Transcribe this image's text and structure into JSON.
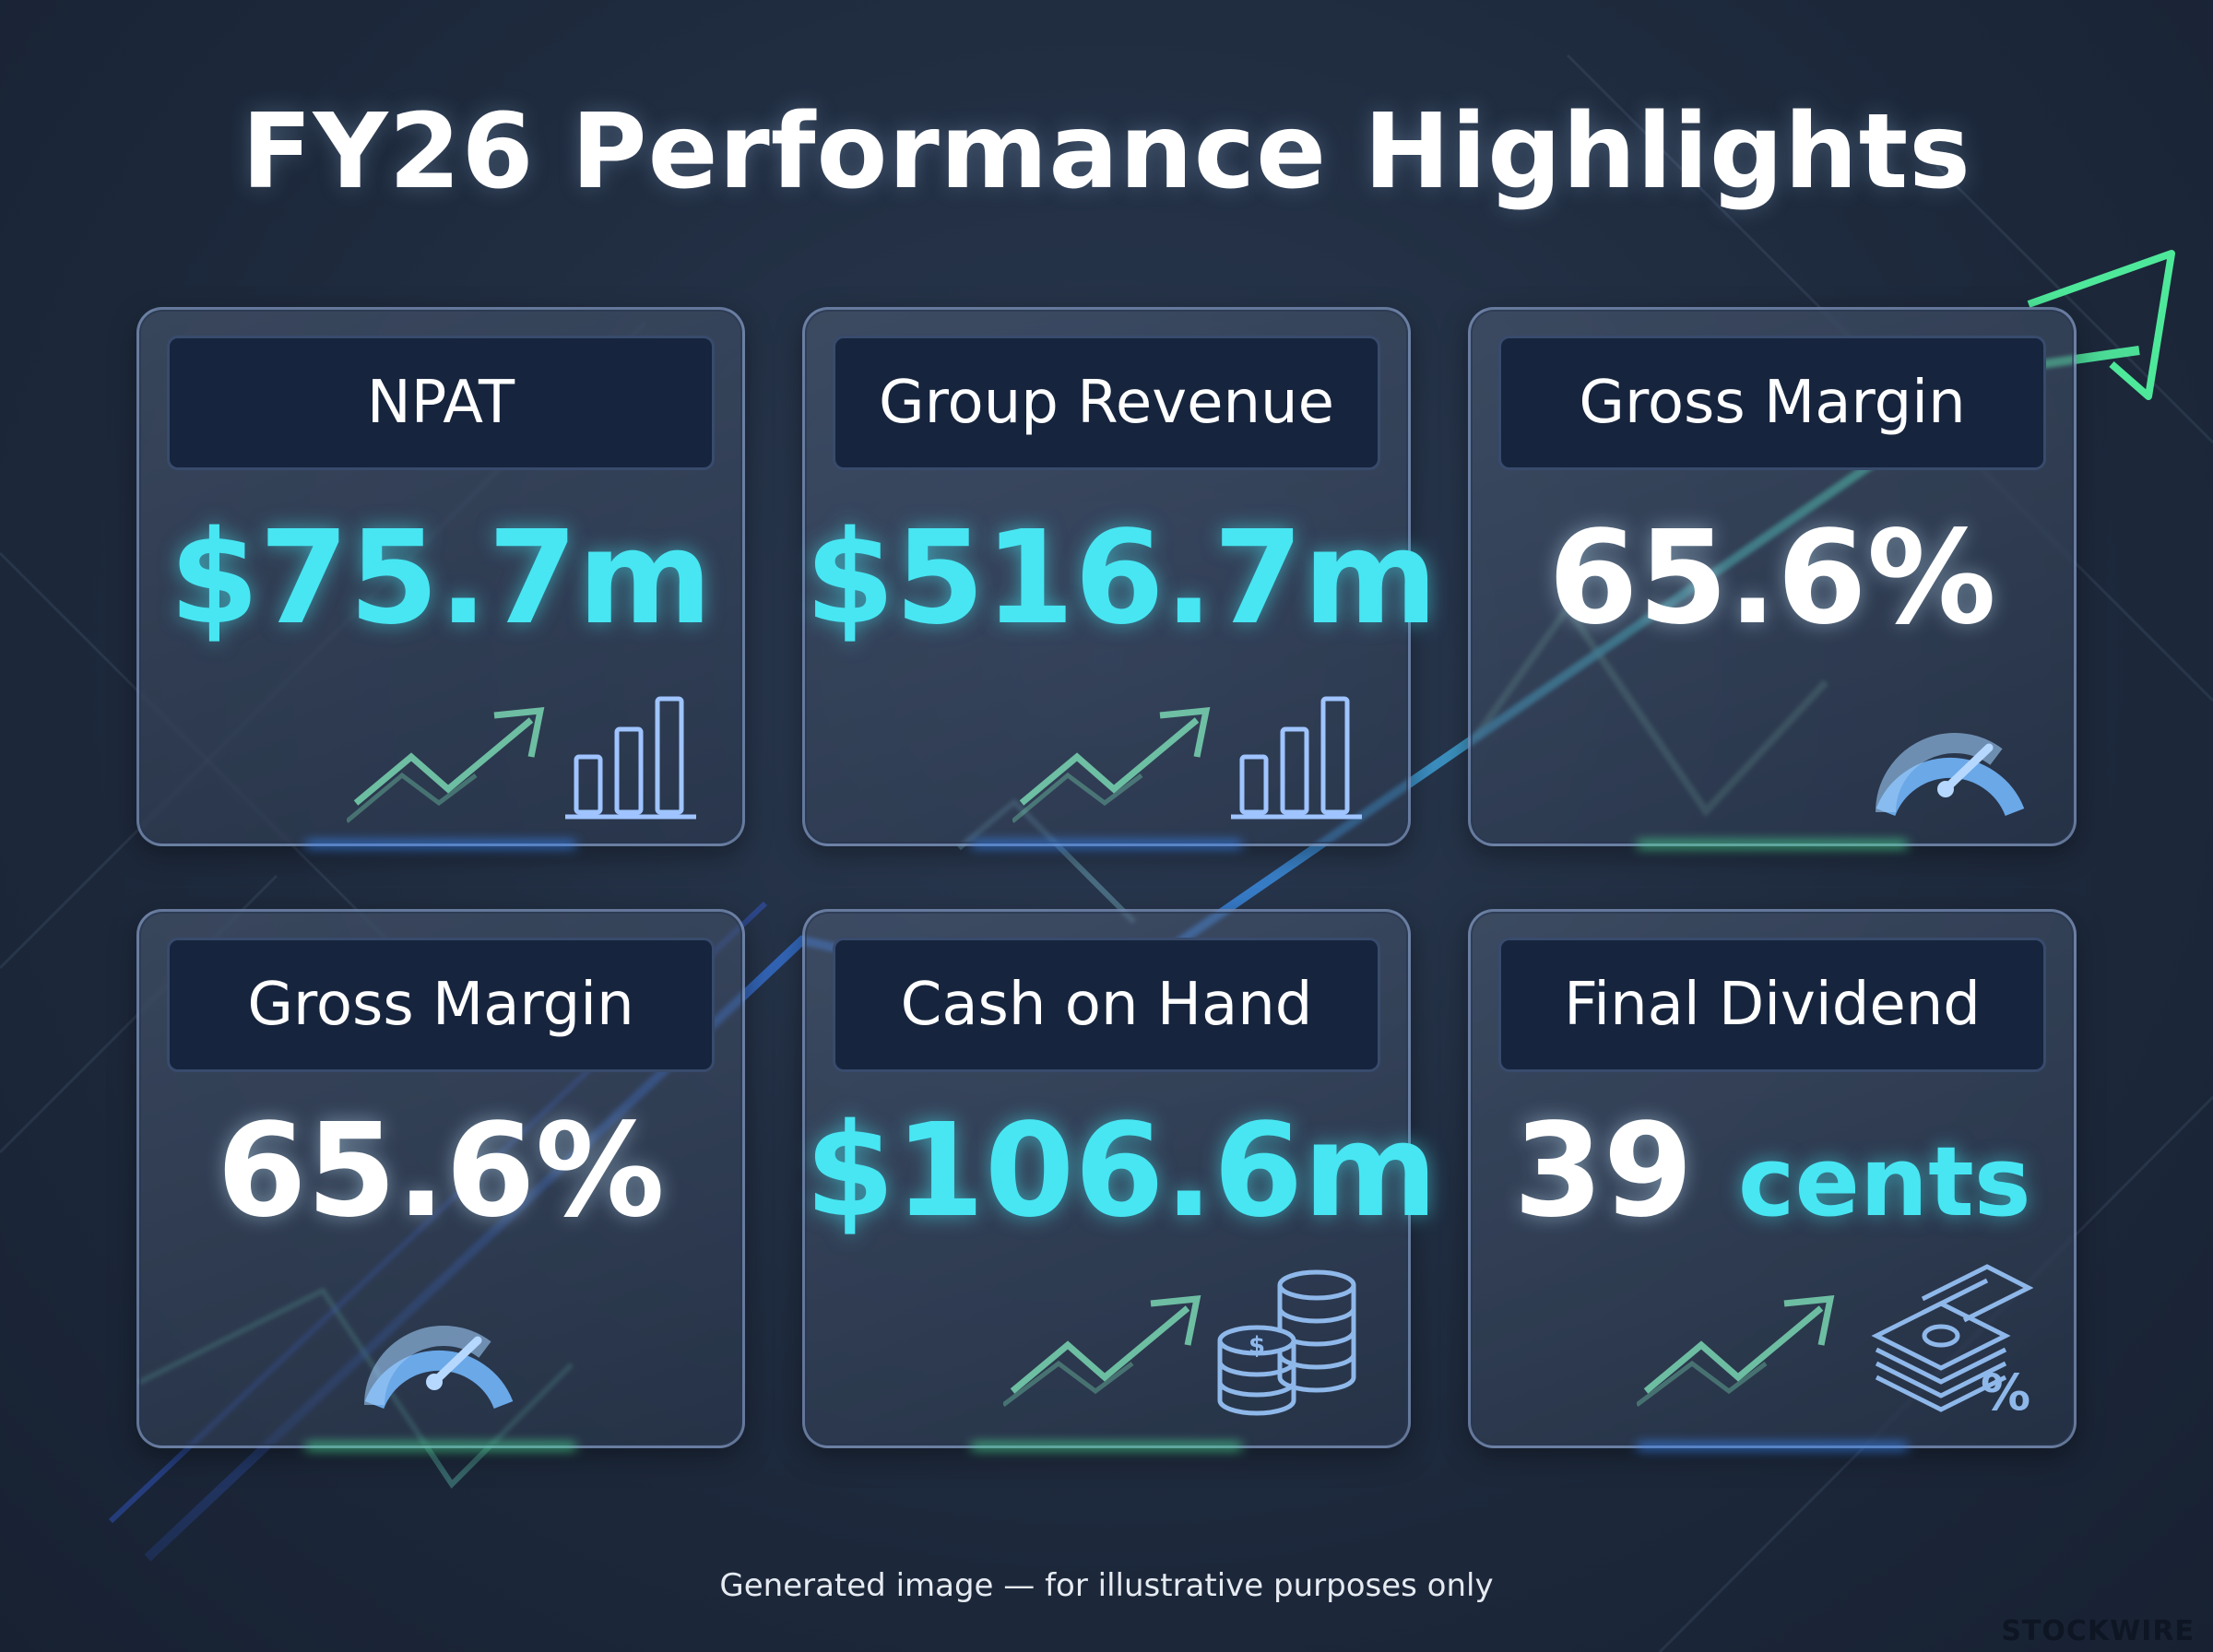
{
  "page": {
    "title": "FY26 Performance Highlights",
    "footer_note": "Generated image — for illustrative purposes only",
    "brand": "STOCKWIRE"
  },
  "colors": {
    "accent_cyan": "#47e6f2",
    "accent_green": "#4ee89a",
    "accent_blue": "#3b8cff",
    "header_bg": "#16243d"
  },
  "cards": [
    {
      "label": "NPAT",
      "value_prefix": "$75.7",
      "value_unit": "m",
      "icons": [
        "trend-up-arrow-icon",
        "bar-chart-icon"
      ]
    },
    {
      "label": "Group Revenue",
      "value_prefix": "$516.7",
      "value_unit": "m",
      "icons": [
        "trend-up-arrow-icon",
        "bar-chart-icon"
      ]
    },
    {
      "label": "Gross Margin",
      "value_prefix": "65.6%",
      "value_unit": "",
      "icons": [
        "gauge-icon"
      ]
    },
    {
      "label": "Gross Margin",
      "value_prefix": "65.6%",
      "value_unit": "",
      "icons": [
        "gauge-icon"
      ]
    },
    {
      "label": "Cash on Hand",
      "value_prefix": "$106.6",
      "value_unit": "m",
      "icons": [
        "trend-up-arrow-icon",
        "coin-stacks-icon"
      ]
    },
    {
      "label": "Final Dividend",
      "value_prefix": "39",
      "value_unit": "cents",
      "icons": [
        "trend-up-arrow-icon",
        "cash-percent-icon"
      ]
    }
  ]
}
